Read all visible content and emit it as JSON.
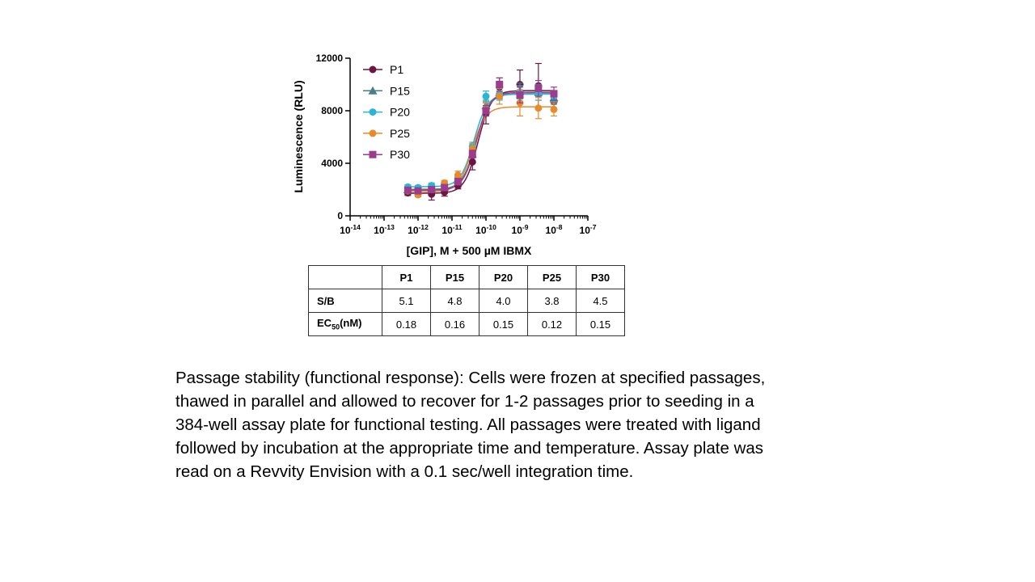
{
  "chart_data": {
    "type": "scatter",
    "xlabel": "[GIP], M + 500 µM IBMX",
    "ylabel": "Luminescence (RLU)",
    "x_scale": "log",
    "xlim": [
      1e-14,
      1e-07
    ],
    "ylim": [
      0,
      12000
    ],
    "y_ticks": [
      0,
      4000,
      8000,
      12000
    ],
    "x_ticks": [
      {
        "base": "10",
        "exp": "-14"
      },
      {
        "base": "10",
        "exp": "-13"
      },
      {
        "base": "10",
        "exp": "-12"
      },
      {
        "base": "10",
        "exp": "-11"
      },
      {
        "base": "10",
        "exp": "-10"
      },
      {
        "base": "10",
        "exp": "-9"
      },
      {
        "base": "10",
        "exp": "-8"
      },
      {
        "base": "10",
        "exp": "-7"
      }
    ],
    "grid": false,
    "legend_position": "top-left",
    "x": [
      5e-13,
      1e-12,
      2.5e-12,
      6e-12,
      1.5e-11,
      4e-11,
      1e-10,
      2.5e-10,
      1e-09,
      3.5e-09,
      1e-08
    ],
    "series": [
      {
        "name": "P1",
        "color": "#6b1541",
        "marker": "circle",
        "y": [
          1750,
          1750,
          1650,
          1800,
          2300,
          4100,
          7800,
          9800,
          10000,
          9900,
          8700
        ],
        "err": [
          200,
          250,
          450,
          300,
          250,
          600,
          800,
          700,
          1100,
          1700,
          600
        ]
      },
      {
        "name": "P15",
        "color": "#4a7f86",
        "marker": "triangle",
        "y": [
          2000,
          1950,
          2100,
          2200,
          2700,
          4700,
          8400,
          9400,
          9500,
          9400,
          9000
        ],
        "err": [
          150,
          150,
          200,
          200,
          200,
          300,
          400,
          500,
          600,
          600,
          500
        ]
      },
      {
        "name": "P20",
        "color": "#29b6d6",
        "marker": "circle",
        "y": [
          2200,
          2150,
          2300,
          2400,
          2900,
          5300,
          9100,
          9300,
          9400,
          9300,
          9100
        ],
        "err": [
          150,
          150,
          200,
          200,
          200,
          300,
          400,
          500,
          500,
          500,
          400
        ]
      },
      {
        "name": "P25",
        "color": "#e68a2e",
        "marker": "circle",
        "y": [
          1900,
          1600,
          2000,
          2500,
          3100,
          5100,
          8100,
          9100,
          8600,
          8200,
          8100
        ],
        "err": [
          150,
          150,
          200,
          200,
          300,
          400,
          500,
          600,
          1000,
          800,
          500
        ]
      },
      {
        "name": "P30",
        "color": "#9b3c8c",
        "marker": "square",
        "y": [
          1950,
          1900,
          2000,
          2150,
          2600,
          4700,
          8000,
          10000,
          9200,
          9700,
          9300
        ],
        "err": [
          150,
          150,
          200,
          200,
          250,
          300,
          400,
          500,
          600,
          600,
          500
        ]
      }
    ]
  },
  "table": {
    "headers": [
      "P1",
      "P15",
      "P20",
      "P25",
      "P30"
    ],
    "rows": [
      {
        "label": "S/B",
        "values": [
          "5.1",
          "4.8",
          "4.0",
          "3.8",
          "4.5"
        ]
      },
      {
        "label_main": "EC",
        "label_sub": "50",
        "label_unit": "(nM)",
        "values": [
          "0.18",
          "0.16",
          "0.15",
          "0.12",
          "0.15"
        ]
      }
    ]
  },
  "caption": "Passage stability (functional response): Cells were frozen at specified passages, thawed in parallel and allowed to recover for 1-2 passages prior to seeding in a 384-well assay plate for functional testing. All passages were treated with ligand followed by incubation at the appropriate time and temperature. Assay plate was read on a Revvity Envision with a 0.1 sec/well integration time."
}
